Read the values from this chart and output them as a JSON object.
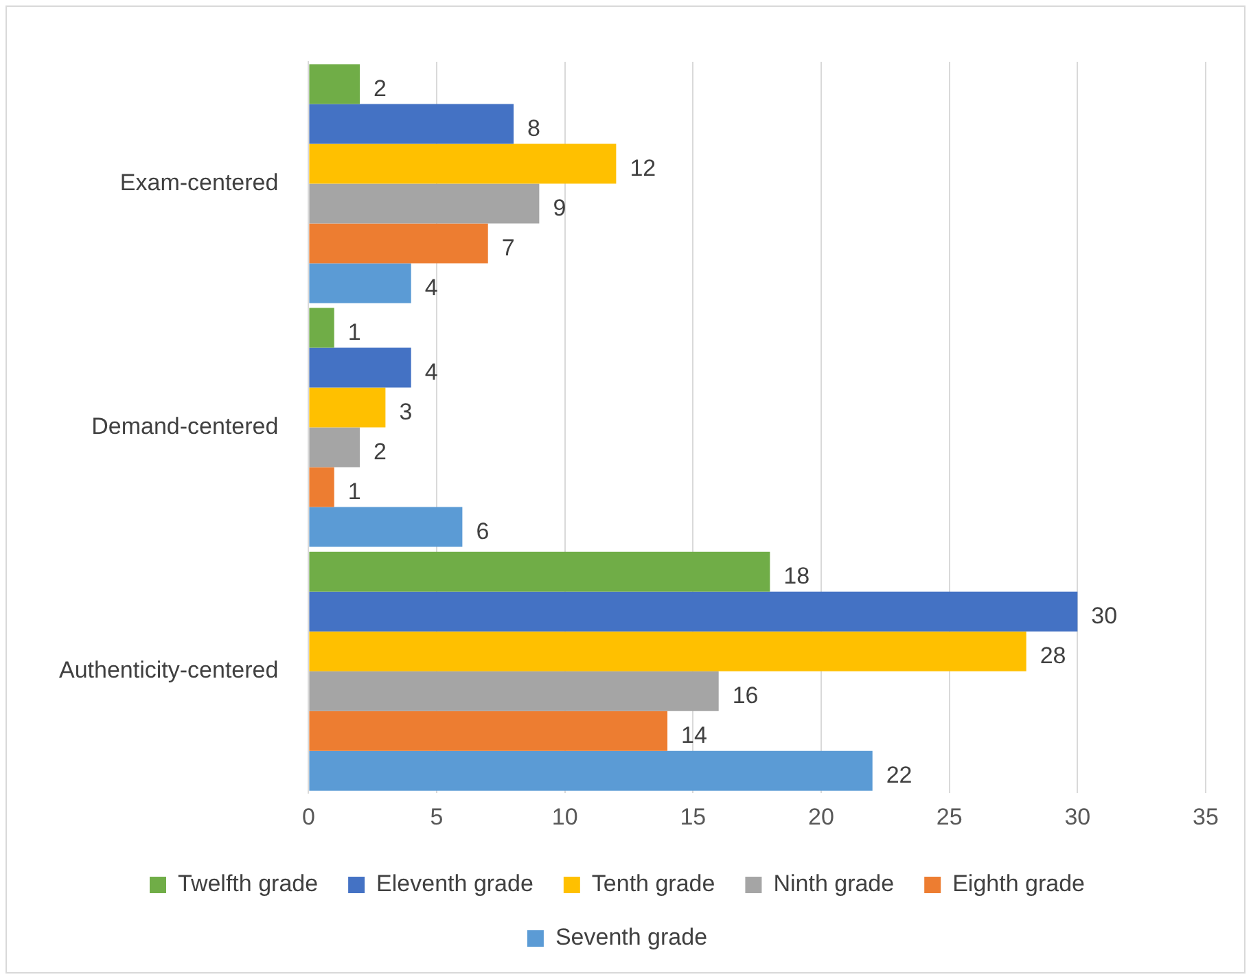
{
  "chart_data": {
    "type": "bar",
    "orientation": "horizontal",
    "categories": [
      "Exam-centered",
      "Demand-centered",
      "Authenticity-centered"
    ],
    "series": [
      {
        "name": "Twelfth grade",
        "color": "#70ad47",
        "values": [
          2,
          1,
          18
        ]
      },
      {
        "name": "Eleventh grade",
        "color": "#4472c4",
        "values": [
          8,
          4,
          30
        ]
      },
      {
        "name": "Tenth grade",
        "color": "#ffc000",
        "values": [
          12,
          3,
          28
        ]
      },
      {
        "name": "Ninth grade",
        "color": "#a5a5a5",
        "values": [
          9,
          2,
          16
        ]
      },
      {
        "name": "Eighth grade",
        "color": "#ed7d31",
        "values": [
          7,
          1,
          14
        ]
      },
      {
        "name": "Seventh grade",
        "color": "#5b9bd5",
        "values": [
          4,
          6,
          22
        ]
      }
    ],
    "xlim": [
      0,
      35
    ],
    "xticks": [
      0,
      5,
      10,
      15,
      20,
      25,
      30,
      35
    ],
    "grid": "x",
    "legend": "bottom",
    "data_labels": true
  }
}
